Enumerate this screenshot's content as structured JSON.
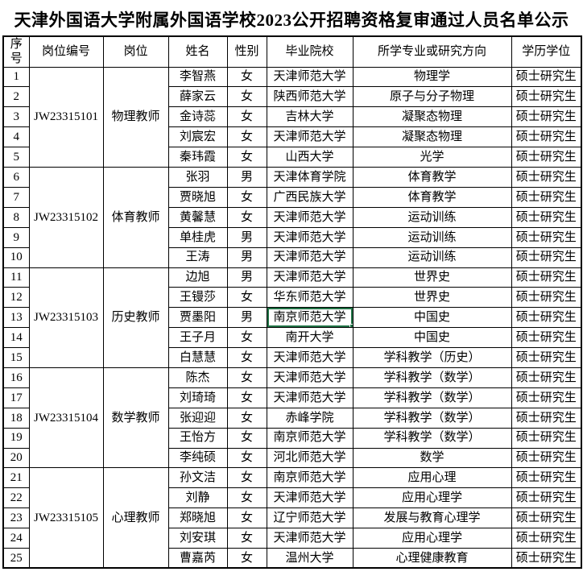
{
  "title": "天津外国语大学附属外国语学校2023公开招聘资格复审通过人员名单公示",
  "table": {
    "headers": [
      "序号",
      "岗位编号",
      "岗位",
      "姓名",
      "性别",
      "毕业院校",
      "所学专业或研究方向",
      "学历学位"
    ],
    "selection": {
      "row_no": 13,
      "field": "school",
      "value": "南京师范大学",
      "color": "#217346"
    },
    "groups": [
      {
        "code": "JW23315101",
        "position": "物理教师",
        "rows": [
          {
            "no": 1,
            "name": "李智燕",
            "gender": "女",
            "school": "天津师范大学",
            "major": "物理学",
            "degree": "硕士研究生"
          },
          {
            "no": 2,
            "name": "薛家云",
            "gender": "女",
            "school": "陕西师范大学",
            "major": "原子与分子物理",
            "degree": "硕士研究生"
          },
          {
            "no": 3,
            "name": "金诗蕊",
            "gender": "女",
            "school": "吉林大学",
            "major": "凝聚态物理",
            "degree": "硕士研究生"
          },
          {
            "no": 4,
            "name": "刘宸宏",
            "gender": "女",
            "school": "天津师范大学",
            "major": "凝聚态物理",
            "degree": "硕士研究生"
          },
          {
            "no": 5,
            "name": "秦玮霞",
            "gender": "女",
            "school": "山西大学",
            "major": "光学",
            "degree": "硕士研究生"
          }
        ]
      },
      {
        "code": "JW23315102",
        "position": "体育教师",
        "rows": [
          {
            "no": 6,
            "name": "张羽",
            "gender": "男",
            "school": "天津体育学院",
            "major": "体育教学",
            "degree": "硕士研究生"
          },
          {
            "no": 7,
            "name": "贾晓旭",
            "gender": "女",
            "school": "广西民族大学",
            "major": "体育教学",
            "degree": "硕士研究生"
          },
          {
            "no": 8,
            "name": "黄馨慧",
            "gender": "女",
            "school": "天津师范大学",
            "major": "运动训练",
            "degree": "硕士研究生"
          },
          {
            "no": 9,
            "name": "单桂虎",
            "gender": "男",
            "school": "天津师范大学",
            "major": "运动训练",
            "degree": "硕士研究生"
          },
          {
            "no": 10,
            "name": "王涛",
            "gender": "男",
            "school": "天津师范大学",
            "major": "运动训练",
            "degree": "硕士研究生"
          }
        ]
      },
      {
        "code": "JW23315103",
        "position": "历史教师",
        "rows": [
          {
            "no": 11,
            "name": "边旭",
            "gender": "男",
            "school": "天津师范大学",
            "major": "世界史",
            "degree": "硕士研究生"
          },
          {
            "no": 12,
            "name": "王镘莎",
            "gender": "女",
            "school": "华东师范大学",
            "major": "世界史",
            "degree": "硕士研究生"
          },
          {
            "no": 13,
            "name": "贾墨阳",
            "gender": "男",
            "school": "南京师范大学",
            "major": "中国史",
            "degree": "硕士研究生"
          },
          {
            "no": 14,
            "name": "王子月",
            "gender": "女",
            "school": "南开大学",
            "major": "中国史",
            "degree": "硕士研究生"
          },
          {
            "no": 15,
            "name": "白慧慧",
            "gender": "女",
            "school": "天津师范大学",
            "major": "学科教学（历史）",
            "degree": "硕士研究生"
          }
        ]
      },
      {
        "code": "JW23315104",
        "position": "数学教师",
        "rows": [
          {
            "no": 16,
            "name": "陈杰",
            "gender": "女",
            "school": "天津师范大学",
            "major": "学科教学（数学）",
            "degree": "硕士研究生"
          },
          {
            "no": 17,
            "name": "刘琦琦",
            "gender": "女",
            "school": "天津师范大学",
            "major": "学科教学（数学）",
            "degree": "硕士研究生"
          },
          {
            "no": 18,
            "name": "张迎迎",
            "gender": "女",
            "school": "赤峰学院",
            "major": "学科教学（数学）",
            "degree": "硕士研究生"
          },
          {
            "no": 19,
            "name": "王怡方",
            "gender": "女",
            "school": "南京师范大学",
            "major": "学科教学（数学）",
            "degree": "硕士研究生"
          },
          {
            "no": 20,
            "name": "李纯硕",
            "gender": "女",
            "school": "河北师范大学",
            "major": "数学",
            "degree": "硕士研究生"
          }
        ]
      },
      {
        "code": "JW23315105",
        "position": "心理教师",
        "rows": [
          {
            "no": 21,
            "name": "孙文洁",
            "gender": "女",
            "school": "南京师范大学",
            "major": "应用心理",
            "degree": "硕士研究生"
          },
          {
            "no": 22,
            "name": "刘静",
            "gender": "女",
            "school": "天津师范大学",
            "major": "应用心理学",
            "degree": "硕士研究生"
          },
          {
            "no": 23,
            "name": "郑晓旭",
            "gender": "女",
            "school": "辽宁师范大学",
            "major": "发展与教育心理学",
            "degree": "硕士研究生"
          },
          {
            "no": 24,
            "name": "刘安琪",
            "gender": "女",
            "school": "天津师范大学",
            "major": "应用心理学",
            "degree": "硕士研究生"
          },
          {
            "no": 25,
            "name": "曹嘉芮",
            "gender": "女",
            "school": "温州大学",
            "major": "心理健康教育",
            "degree": "硕士研究生"
          }
        ]
      }
    ]
  }
}
